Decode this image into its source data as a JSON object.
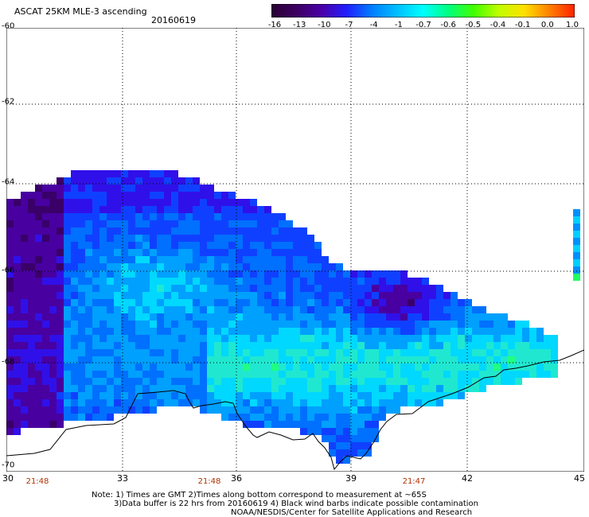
{
  "header": {
    "title": "ASCAT 25KM MLE-3 ascending",
    "date": "20160619"
  },
  "colorbar": {
    "labels": [
      "-16",
      "-13",
      "-10",
      "-7",
      "-4",
      "-1",
      "-0.7",
      "-0.6",
      "-0.5",
      "-0.4",
      "-0.1",
      "0.0",
      "1.0"
    ],
    "colors": [
      "#2a0033",
      "#3c0060",
      "#4a00a8",
      "#2020ff",
      "#0080ff",
      "#00c0ff",
      "#00ffff",
      "#00ff80",
      "#40ff00",
      "#c0ff00",
      "#ffe000",
      "#ff8000",
      "#ff2000"
    ]
  },
  "axes": {
    "lat_labels": [
      "-60",
      "-62",
      "-64",
      "-66",
      "-68",
      "-70"
    ],
    "lon_labels": [
      "30",
      "33",
      "36",
      "39",
      "42",
      "45"
    ],
    "times": [
      "21:48",
      "21:48",
      "21:47"
    ]
  },
  "footer": {
    "note_line1": "Note: 1) Times are GMT 2)Times along bottom correspond to measurement at ~65S",
    "note_line2": "3)Data buffer is 22 hrs from 20160619 4) Black wind barbs indicate possible contamination",
    "credit": "NOAA/NESDIS/Center for Satellite Applications and Research"
  }
}
